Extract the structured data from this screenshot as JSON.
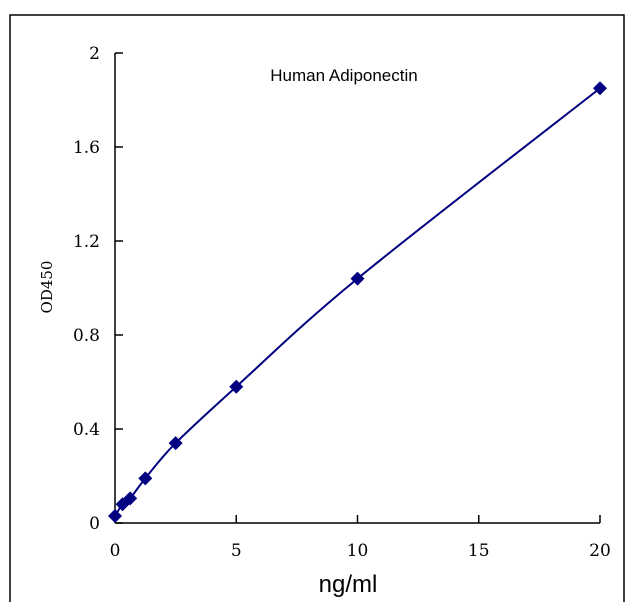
{
  "chart_data": {
    "type": "line",
    "title": "Human Adiponectin",
    "xlabel": "ng/ml",
    "ylabel": "OD450",
    "xlim": [
      0,
      20
    ],
    "ylim": [
      0,
      2
    ],
    "x_ticks": [
      0,
      5,
      10,
      15,
      20
    ],
    "x_tick_labels": [
      "0",
      "5",
      "10",
      "15",
      "20"
    ],
    "y_ticks": [
      0,
      0.4,
      0.8,
      1.2,
      1.6,
      2
    ],
    "y_tick_labels": [
      "0",
      "0.4",
      "0.8",
      "1.2",
      "1.6",
      "2"
    ],
    "grid": false,
    "legend": "none",
    "marker": "diamond",
    "colors": {
      "series": "#000080",
      "axis": "#000000",
      "border": "#000000"
    },
    "series": [
      {
        "x": [
          0,
          0.3125,
          0.625,
          1.25,
          2.5,
          5,
          10,
          20
        ],
        "y": [
          0.03,
          0.08,
          0.105,
          0.19,
          0.34,
          0.58,
          1.04,
          1.85
        ]
      }
    ]
  }
}
